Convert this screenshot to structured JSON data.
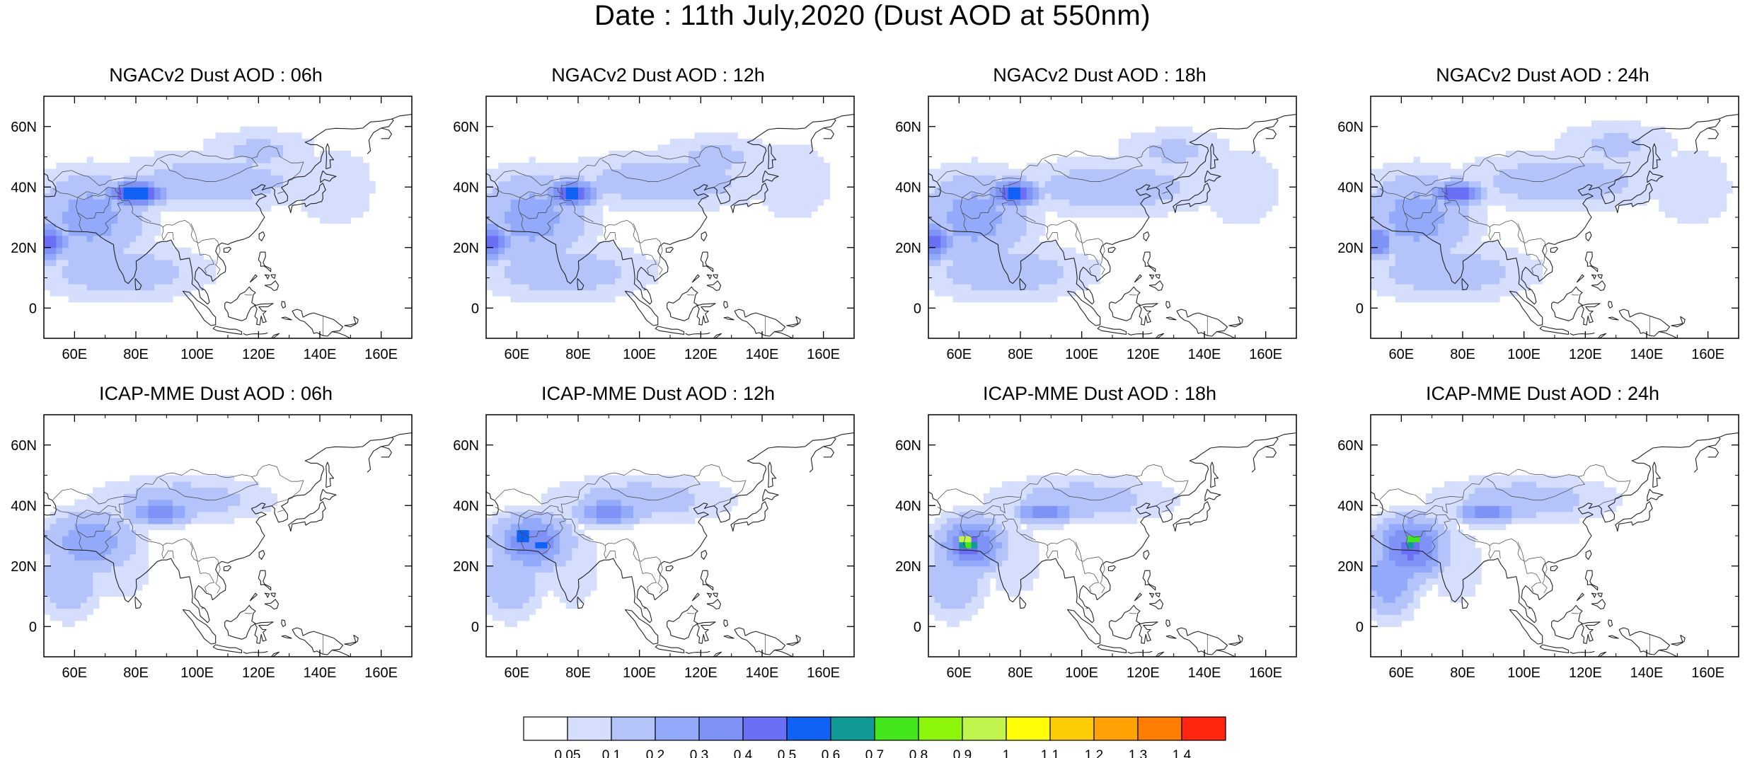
{
  "figure": {
    "title": "Date : 11th July,2020 (Dust AOD at 550nm)"
  },
  "chart_data": {
    "type": "heatmap",
    "variable": "Dust AOD at 550nm",
    "date": "11th July,2020",
    "lon_range": [
      50,
      170
    ],
    "lat_range": [
      -10,
      70
    ],
    "lon_ticks": [
      "60E",
      "80E",
      "100E",
      "120E",
      "140E",
      "160E"
    ],
    "lat_ticks": [
      "60N",
      "40N",
      "20N",
      "0"
    ],
    "lon_tick_values": [
      60,
      80,
      100,
      120,
      140,
      160
    ],
    "lat_tick_values": [
      60,
      40,
      20,
      0
    ],
    "panels": [
      {
        "title": "NGACv2 Dust AOD : 06h",
        "model": "NGACv2",
        "hour": "06h",
        "blobs": [
          {
            "lon": 80,
            "lat": 38,
            "rlon": 9,
            "rlat": 4,
            "v": 0.6
          },
          {
            "lon": 65,
            "lat": 30,
            "rlon": 18,
            "rlat": 15,
            "v": 0.25
          },
          {
            "lon": 52,
            "lat": 22,
            "rlon": 6,
            "rlat": 6,
            "v": 0.45
          },
          {
            "lon": 75,
            "lat": 12,
            "rlon": 30,
            "rlat": 10,
            "v": 0.15
          },
          {
            "lon": 105,
            "lat": 42,
            "rlon": 35,
            "rlat": 10,
            "v": 0.15
          },
          {
            "lon": 120,
            "lat": 52,
            "rlon": 20,
            "rlat": 8,
            "v": 0.12
          },
          {
            "lon": 145,
            "lat": 40,
            "rlon": 18,
            "rlat": 18,
            "v": 0.08
          }
        ]
      },
      {
        "title": "NGACv2 Dust AOD : 12h",
        "model": "NGACv2",
        "hour": "12h",
        "blobs": [
          {
            "lon": 78,
            "lat": 38,
            "rlon": 8,
            "rlat": 4,
            "v": 0.6
          },
          {
            "lon": 65,
            "lat": 30,
            "rlon": 18,
            "rlat": 15,
            "v": 0.25
          },
          {
            "lon": 52,
            "lat": 22,
            "rlon": 6,
            "rlat": 6,
            "v": 0.45
          },
          {
            "lon": 75,
            "lat": 12,
            "rlon": 30,
            "rlat": 10,
            "v": 0.15
          },
          {
            "lon": 108,
            "lat": 42,
            "rlon": 35,
            "rlat": 10,
            "v": 0.15
          },
          {
            "lon": 125,
            "lat": 50,
            "rlon": 22,
            "rlat": 8,
            "v": 0.12
          },
          {
            "lon": 150,
            "lat": 42,
            "rlon": 18,
            "rlat": 18,
            "v": 0.08
          }
        ]
      },
      {
        "title": "NGACv2 Dust AOD : 18h",
        "model": "NGACv2",
        "hour": "18h",
        "blobs": [
          {
            "lon": 78,
            "lat": 38,
            "rlon": 8,
            "rlat": 4,
            "v": 0.55
          },
          {
            "lon": 65,
            "lat": 30,
            "rlon": 18,
            "rlat": 15,
            "v": 0.25
          },
          {
            "lon": 52,
            "lat": 22,
            "rlon": 6,
            "rlat": 6,
            "v": 0.45
          },
          {
            "lon": 75,
            "lat": 12,
            "rlon": 30,
            "rlat": 10,
            "v": 0.15
          },
          {
            "lon": 110,
            "lat": 40,
            "rlon": 35,
            "rlat": 10,
            "v": 0.15
          },
          {
            "lon": 130,
            "lat": 52,
            "rlon": 20,
            "rlat": 8,
            "v": 0.12
          },
          {
            "lon": 152,
            "lat": 40,
            "rlon": 18,
            "rlat": 18,
            "v": 0.08
          }
        ]
      },
      {
        "title": "NGACv2 Dust AOD : 24h",
        "model": "NGACv2",
        "hour": "24h",
        "blobs": [
          {
            "lon": 78,
            "lat": 38,
            "rlon": 8,
            "rlat": 4,
            "v": 0.5
          },
          {
            "lon": 65,
            "lat": 30,
            "rlon": 18,
            "rlat": 15,
            "v": 0.25
          },
          {
            "lon": 52,
            "lat": 22,
            "rlon": 6,
            "rlat": 6,
            "v": 0.4
          },
          {
            "lon": 75,
            "lat": 12,
            "rlon": 30,
            "rlat": 10,
            "v": 0.15
          },
          {
            "lon": 112,
            "lat": 42,
            "rlon": 35,
            "rlat": 10,
            "v": 0.15
          },
          {
            "lon": 130,
            "lat": 54,
            "rlon": 22,
            "rlat": 8,
            "v": 0.12
          },
          {
            "lon": 155,
            "lat": 40,
            "rlon": 18,
            "rlat": 18,
            "v": 0.08
          }
        ]
      },
      {
        "title": "ICAP-MME Dust AOD : 06h",
        "model": "ICAP-MME",
        "hour": "06h",
        "blobs": [
          {
            "lon": 88,
            "lat": 38,
            "rlon": 10,
            "rlat": 4,
            "v": 0.4
          },
          {
            "lon": 65,
            "lat": 28,
            "rlon": 14,
            "rlat": 10,
            "v": 0.3
          },
          {
            "lon": 58,
            "lat": 15,
            "rlon": 10,
            "rlat": 12,
            "v": 0.2
          },
          {
            "lon": 95,
            "lat": 42,
            "rlon": 30,
            "rlat": 8,
            "v": 0.15
          },
          {
            "lon": 75,
            "lat": 22,
            "rlon": 12,
            "rlat": 15,
            "v": 0.1
          }
        ]
      },
      {
        "title": "ICAP-MME Dust AOD : 12h",
        "model": "ICAP-MME",
        "hour": "12h",
        "blobs": [
          {
            "lon": 62,
            "lat": 30,
            "rlon": 2,
            "rlat": 2,
            "v": 0.85
          },
          {
            "lon": 68,
            "lat": 27,
            "rlon": 3,
            "rlat": 2,
            "v": 0.6
          },
          {
            "lon": 65,
            "lat": 28,
            "rlon": 12,
            "rlat": 9,
            "v": 0.4
          },
          {
            "lon": 90,
            "lat": 38,
            "rlon": 10,
            "rlat": 4,
            "v": 0.4
          },
          {
            "lon": 58,
            "lat": 15,
            "rlon": 10,
            "rlat": 12,
            "v": 0.2
          },
          {
            "lon": 100,
            "lat": 42,
            "rlon": 30,
            "rlat": 8,
            "v": 0.15
          },
          {
            "lon": 78,
            "lat": 20,
            "rlon": 10,
            "rlat": 16,
            "v": 0.1
          }
        ]
      },
      {
        "title": "ICAP-MME Dust AOD : 18h",
        "model": "ICAP-MME",
        "hour": "18h",
        "blobs": [
          {
            "lon": 62,
            "lat": 29,
            "rlon": 3,
            "rlat": 2,
            "v": 1.05
          },
          {
            "lon": 63,
            "lat": 27,
            "rlon": 5,
            "rlat": 3,
            "v": 0.75
          },
          {
            "lon": 64,
            "lat": 27,
            "rlon": 11,
            "rlat": 9,
            "v": 0.4
          },
          {
            "lon": 88,
            "lat": 38,
            "rlon": 10,
            "rlat": 4,
            "v": 0.35
          },
          {
            "lon": 58,
            "lat": 15,
            "rlon": 10,
            "rlat": 12,
            "v": 0.2
          },
          {
            "lon": 100,
            "lat": 42,
            "rlon": 30,
            "rlat": 8,
            "v": 0.15
          },
          {
            "lon": 78,
            "lat": 22,
            "rlon": 10,
            "rlat": 14,
            "v": 0.1
          }
        ]
      },
      {
        "title": "ICAP-MME Dust AOD : 24h",
        "model": "ICAP-MME",
        "hour": "24h",
        "blobs": [
          {
            "lon": 64,
            "lat": 29,
            "rlon": 2,
            "rlat": 2,
            "v": 1.0
          },
          {
            "lon": 63,
            "lat": 27,
            "rlon": 4,
            "rlat": 3,
            "v": 0.6
          },
          {
            "lon": 63,
            "lat": 26,
            "rlon": 11,
            "rlat": 10,
            "v": 0.45
          },
          {
            "lon": 88,
            "lat": 38,
            "rlon": 10,
            "rlat": 4,
            "v": 0.35
          },
          {
            "lon": 56,
            "lat": 16,
            "rlon": 9,
            "rlat": 12,
            "v": 0.3
          },
          {
            "lon": 100,
            "lat": 42,
            "rlon": 30,
            "rlat": 8,
            "v": 0.15
          },
          {
            "lon": 78,
            "lat": 20,
            "rlon": 10,
            "rlat": 14,
            "v": 0.1
          }
        ]
      }
    ],
    "colorbar": {
      "labels": [
        "0.05",
        "0.1",
        "0.2",
        "0.3",
        "0.4",
        "0.5",
        "0.6",
        "0.7",
        "0.8",
        "0.9",
        "1",
        "1.1",
        "1.2",
        "1.3",
        "1.4"
      ],
      "levels": [
        0.05,
        0.1,
        0.2,
        0.3,
        0.4,
        0.5,
        0.6,
        0.7,
        0.8,
        0.9,
        1.0,
        1.1,
        1.2,
        1.3,
        1.4
      ],
      "colors": [
        "#ffffff",
        "#d5defc",
        "#b4c4fb",
        "#93aafa",
        "#7f93f7",
        "#6b6ff5",
        "#0f62f5",
        "#0f9a98",
        "#42e61a",
        "#8cf509",
        "#c1f54d",
        "#fefd06",
        "#fecc04",
        "#fea303",
        "#ff7e02",
        "#ff250e"
      ]
    }
  }
}
